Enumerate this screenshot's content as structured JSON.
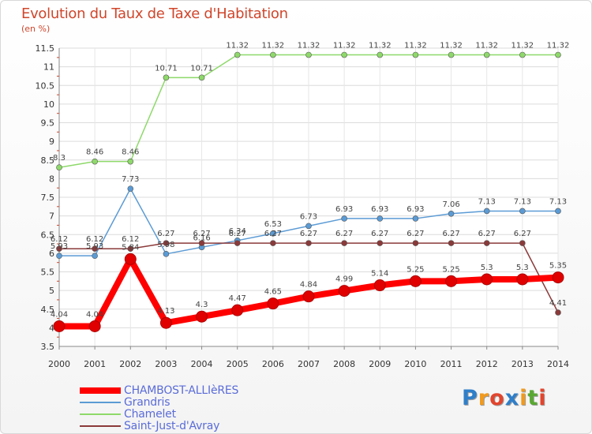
{
  "title": "Evolution du Taux de Taxe d'Habitation",
  "unit": "(en %)",
  "brand": {
    "letters": [
      "P",
      "r",
      "o",
      "x",
      "i",
      "t",
      "i"
    ],
    "colors": [
      "#2f7fc9",
      "#f29a1c",
      "#e2452d",
      "#2f7fc9",
      "#f29a1c",
      "#5aa832",
      "#e2452d"
    ]
  },
  "chart_data": {
    "type": "line",
    "title": "Evolution du Taux de Taxe d'Habitation",
    "ylabel": "(en %)",
    "xlabel": "",
    "ylim": [
      3.5,
      11.5
    ],
    "yticks": [
      3.5,
      4,
      4.5,
      5,
      5.5,
      6,
      6.5,
      7,
      7.5,
      8,
      8.5,
      9,
      9.5,
      10,
      10.5,
      11,
      11.5
    ],
    "ytick_labels": [
      "3.5",
      "4",
      "4.5",
      "5",
      "5.5",
      "6",
      "6.5",
      "7",
      "7.5",
      "8",
      "8.5",
      "9",
      "9.5",
      "10",
      "10.5",
      "11",
      "11.5"
    ],
    "x": [
      "2000",
      "2001",
      "2002",
      "2003",
      "2004",
      "2005",
      "2006",
      "2007",
      "2008",
      "2009",
      "2010",
      "2011",
      "2012",
      "2013",
      "2014"
    ],
    "grid": true,
    "legend": "bottom-left",
    "series": [
      {
        "name": "CHAMBOST-ALLIèRES",
        "color": "#ff0000",
        "values": [
          4.04,
          4.04,
          5.84,
          4.13,
          4.3,
          4.47,
          4.65,
          4.84,
          4.99,
          5.14,
          5.25,
          5.25,
          5.3,
          5.3,
          5.35
        ],
        "labels": [
          "4.04",
          "4.04",
          "5.84",
          "4.13",
          "4.3",
          "4.47",
          "4.65",
          "4.84",
          "4.99",
          "5.14",
          "5.25",
          "5.25",
          "5.3",
          "5.3",
          "5.35"
        ]
      },
      {
        "name": "Grandris",
        "color": "#5b9bd5",
        "values": [
          5.93,
          5.93,
          7.73,
          5.98,
          6.16,
          6.34,
          6.53,
          6.73,
          6.93,
          6.93,
          6.93,
          7.06,
          7.13,
          7.13,
          7.13
        ],
        "labels": [
          "5.93",
          "5.93",
          "7.73",
          "5.98",
          "6.16",
          "6.34",
          "6.53",
          "6.73",
          "6.93",
          "6.93",
          "6.93",
          "7.06",
          "7.13",
          "7.13",
          "7.13"
        ]
      },
      {
        "name": "Chamelet",
        "color": "#8ed96a",
        "values": [
          8.3,
          8.46,
          8.46,
          10.71,
          10.71,
          11.32,
          11.32,
          11.32,
          11.32,
          11.32,
          11.32,
          11.32,
          11.32,
          11.32,
          11.32
        ],
        "labels": [
          "8.3",
          "8.46",
          "8.46",
          "10.71",
          "10.71",
          "11.32",
          "11.32",
          "11.32",
          "11.32",
          "11.32",
          "11.32",
          "11.32",
          "11.32",
          "11.32",
          "11.32"
        ]
      },
      {
        "name": "Saint-Just-d'Avray",
        "color": "#8b3a3a",
        "values": [
          6.12,
          6.12,
          6.12,
          6.27,
          6.27,
          6.27,
          6.27,
          6.27,
          6.27,
          6.27,
          6.27,
          6.27,
          6.27,
          6.27,
          4.41
        ],
        "labels": [
          "6.12",
          "6.12",
          "6.12",
          "6.27",
          "6.27",
          "6.27",
          "6.27",
          "6.27",
          "6.27",
          "6.27",
          "6.27",
          "6.27",
          "6.27",
          "6.27",
          "4.41"
        ]
      }
    ]
  }
}
